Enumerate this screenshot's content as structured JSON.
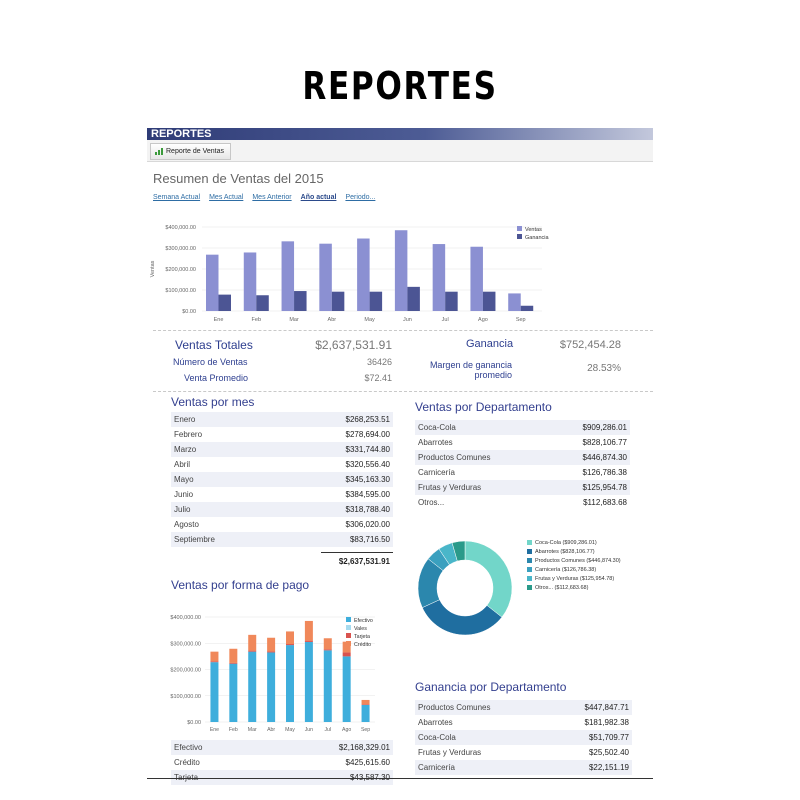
{
  "page_heading": "REPORTES",
  "panel_title": "REPORTES",
  "toolbar": {
    "report_button": "Reporte de Ventas",
    "report_icon": "chart-icon"
  },
  "report_title": "Resumen de Ventas del 2015",
  "period_tabs": [
    {
      "label": "Semana Actual",
      "active": false
    },
    {
      "label": "Mes Actual",
      "active": false
    },
    {
      "label": "Mes Anterior",
      "active": false
    },
    {
      "label": "Año actual",
      "active": true
    },
    {
      "label": "Periodo...",
      "active": false
    }
  ],
  "summary": {
    "total_label": "Ventas Totales",
    "total_value": "$2,637,531.91",
    "count_label": "Número de Ventas",
    "count_value": "36426",
    "avg_label": "Venta Promedio",
    "avg_value": "$72.41",
    "profit_label": "Ganancia",
    "profit_value": "$752,454.28",
    "margin_label": "Margen de ganancia promedio",
    "margin_value": "28.53%"
  },
  "ventas_por_mes": {
    "title": "Ventas por mes",
    "rows": [
      {
        "k": "Enero",
        "v": "$268,253.51"
      },
      {
        "k": "Febrero",
        "v": "$278,694.00"
      },
      {
        "k": "Marzo",
        "v": "$331,744.80"
      },
      {
        "k": "Abril",
        "v": "$320,556.40"
      },
      {
        "k": "Mayo",
        "v": "$345,163.30"
      },
      {
        "k": "Junio",
        "v": "$384,595.00"
      },
      {
        "k": "Julio",
        "v": "$318,788.40"
      },
      {
        "k": "Agosto",
        "v": "$306,020.00"
      },
      {
        "k": "Septiembre",
        "v": "$83,716.50"
      }
    ],
    "total": "$2,637,531.91"
  },
  "ventas_por_forma_de_pago": {
    "title": "Ventas por forma de pago",
    "rows": [
      {
        "k": "Efectivo",
        "v": "$2,168,329.01"
      },
      {
        "k": "Crédito",
        "v": "$425,615.60"
      },
      {
        "k": "Tarjeta",
        "v": "$43,587.30"
      }
    ]
  },
  "ventas_por_departamento": {
    "title": "Ventas por Departamento",
    "rows": [
      {
        "k": "Coca-Cola",
        "v": "$909,286.01"
      },
      {
        "k": "Abarrotes",
        "v": "$828,106.77"
      },
      {
        "k": "Productos Comunes",
        "v": "$446,874.30"
      },
      {
        "k": "Carnicería",
        "v": "$126,786.38"
      },
      {
        "k": "Frutas y Verduras",
        "v": "$125,954.78"
      },
      {
        "k": "Otros...",
        "v": "$112,683.68"
      }
    ]
  },
  "ganancia_por_departamento": {
    "title": "Ganancia por Departamento",
    "rows": [
      {
        "k": "Productos Comunes",
        "v": "$447,847.71"
      },
      {
        "k": "Abarrotes",
        "v": "$181,982.38"
      },
      {
        "k": "Coca-Cola",
        "v": "$51,709.77"
      },
      {
        "k": "Frutas y Verduras",
        "v": "$25,502.40"
      },
      {
        "k": "Carnicería",
        "v": "$22,151.19"
      }
    ]
  },
  "chart_data": [
    {
      "type": "bar",
      "categories": [
        "Ene",
        "Feb",
        "Mar",
        "Abr",
        "May",
        "Jun",
        "Jul",
        "Ago",
        "Sep"
      ],
      "series": [
        {
          "name": "Ventas",
          "values": [
            268253.51,
            278694.0,
            331744.8,
            320556.4,
            345163.3,
            384595.0,
            318788.4,
            306020.0,
            83716.5
          ],
          "color": "#8b90d2"
        },
        {
          "name": "Ganancia",
          "values": [
            78000,
            75000,
            95000,
            92000,
            92000,
            115000,
            92000,
            92000,
            25000
          ],
          "color": "#4c5594"
        }
      ],
      "ylabel": "Ventas",
      "yticks": [
        "$400,000.00",
        "$300,000.00",
        "$200,000.00",
        "$100,000.00",
        "$0.00"
      ],
      "ylim": [
        0,
        400000
      ],
      "legend": "top-right",
      "grid": true
    },
    {
      "type": "bar",
      "stacked": true,
      "categories": [
        "Ene",
        "Feb",
        "Mar",
        "Abr",
        "May",
        "Jun",
        "Jul",
        "Ago",
        "Sep"
      ],
      "series": [
        {
          "name": "Efectivo",
          "values": [
            228000,
            222000,
            268000,
            265000,
            293000,
            305000,
            273000,
            250000,
            65000
          ],
          "color": "#3eaedc"
        },
        {
          "name": "Vales",
          "values": [
            0,
            0,
            0,
            0,
            0,
            0,
            0,
            0,
            0
          ],
          "color": "#a7dbef"
        },
        {
          "name": "Tarjeta",
          "values": [
            3000,
            3000,
            4000,
            4000,
            4000,
            5000,
            4000,
            15000,
            2000
          ],
          "color": "#d9534f"
        },
        {
          "name": "Crédito",
          "values": [
            37000,
            54000,
            60000,
            52000,
            48000,
            75000,
            42000,
            41000,
            17000
          ],
          "color": "#f0885a"
        }
      ],
      "yticks": [
        "$400,000.00",
        "$300,000.00",
        "$200,000.00",
        "$100,000.00",
        "$0.00"
      ],
      "ylim": [
        0,
        400000
      ],
      "legend": "top-right",
      "grid": true
    },
    {
      "type": "pie",
      "donut": true,
      "labels": [
        "Coca-Cola ($909,286.01)",
        "Abarrotes ($828,106.77)",
        "Productos Comunes ($446,874.30)",
        "Carnicería ($126,786.38)",
        "Frutas y Verduras ($125,954.78)",
        "Otros... ($112,683.68)"
      ],
      "values": [
        909286.01,
        828106.77,
        446874.3,
        126786.38,
        125954.78,
        112683.68
      ],
      "colors": [
        "#72d6c9",
        "#1f6ea0",
        "#2b87ad",
        "#3aa0bf",
        "#49b6c9",
        "#2a9a8a"
      ],
      "legend": "right"
    }
  ]
}
